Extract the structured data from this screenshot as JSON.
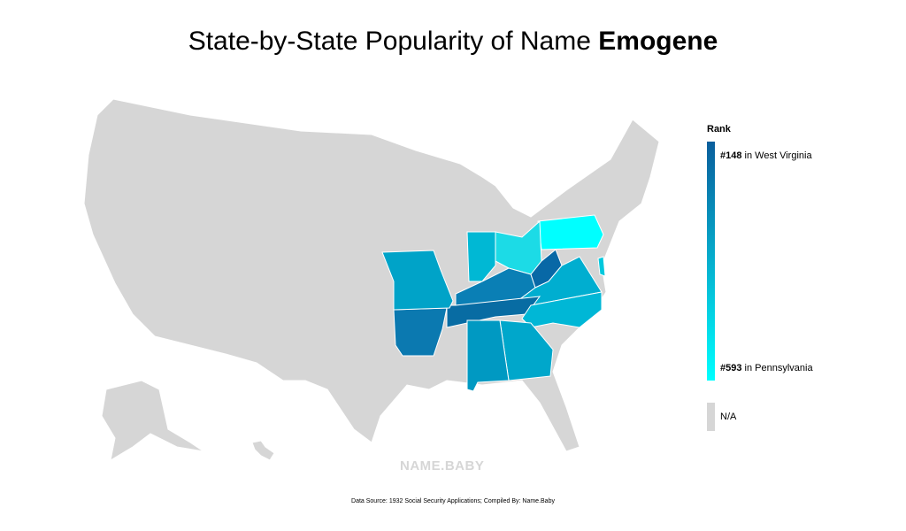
{
  "header": {
    "title": "State-by-State Popularity of Name",
    "name": "Emogene"
  },
  "legend": {
    "title": "Rank",
    "top": {
      "rank": "#148",
      "state": "in West Virginia"
    },
    "bottom": {
      "rank": "#593",
      "state": "in Pennsylvania"
    },
    "na": "N/A"
  },
  "watermark": "NAME.BABY",
  "footer": {
    "source": "Data Source: 1932 Social Security Applications; Compiled By: Name.Baby"
  }
}
